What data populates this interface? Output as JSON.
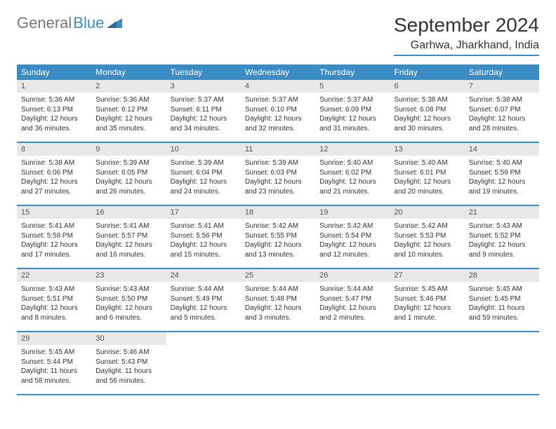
{
  "logo": {
    "text1": "General",
    "text2": "Blue"
  },
  "title": "September 2024",
  "location": "Garhwa, Jharkhand, India",
  "colors": {
    "header_bg": "#3b8bc4",
    "header_text": "#ffffff",
    "daynum_bg": "#e8e8e8",
    "border": "#3b8bc4",
    "text": "#333333",
    "logo_gray": "#777777",
    "logo_blue": "#3b8bc4"
  },
  "day_names": [
    "Sunday",
    "Monday",
    "Tuesday",
    "Wednesday",
    "Thursday",
    "Friday",
    "Saturday"
  ],
  "weeks": [
    [
      {
        "num": "1",
        "sunrise": "5:36 AM",
        "sunset": "6:13 PM",
        "daylight": "12 hours and 36 minutes."
      },
      {
        "num": "2",
        "sunrise": "5:36 AM",
        "sunset": "6:12 PM",
        "daylight": "12 hours and 35 minutes."
      },
      {
        "num": "3",
        "sunrise": "5:37 AM",
        "sunset": "6:11 PM",
        "daylight": "12 hours and 34 minutes."
      },
      {
        "num": "4",
        "sunrise": "5:37 AM",
        "sunset": "6:10 PM",
        "daylight": "12 hours and 32 minutes."
      },
      {
        "num": "5",
        "sunrise": "5:37 AM",
        "sunset": "6:09 PM",
        "daylight": "12 hours and 31 minutes."
      },
      {
        "num": "6",
        "sunrise": "5:38 AM",
        "sunset": "6:08 PM",
        "daylight": "12 hours and 30 minutes."
      },
      {
        "num": "7",
        "sunrise": "5:38 AM",
        "sunset": "6:07 PM",
        "daylight": "12 hours and 28 minutes."
      }
    ],
    [
      {
        "num": "8",
        "sunrise": "5:38 AM",
        "sunset": "6:06 PM",
        "daylight": "12 hours and 27 minutes."
      },
      {
        "num": "9",
        "sunrise": "5:39 AM",
        "sunset": "6:05 PM",
        "daylight": "12 hours and 26 minutes."
      },
      {
        "num": "10",
        "sunrise": "5:39 AM",
        "sunset": "6:04 PM",
        "daylight": "12 hours and 24 minutes."
      },
      {
        "num": "11",
        "sunrise": "5:39 AM",
        "sunset": "6:03 PM",
        "daylight": "12 hours and 23 minutes."
      },
      {
        "num": "12",
        "sunrise": "5:40 AM",
        "sunset": "6:02 PM",
        "daylight": "12 hours and 21 minutes."
      },
      {
        "num": "13",
        "sunrise": "5:40 AM",
        "sunset": "6:01 PM",
        "daylight": "12 hours and 20 minutes."
      },
      {
        "num": "14",
        "sunrise": "5:40 AM",
        "sunset": "5:59 PM",
        "daylight": "12 hours and 19 minutes."
      }
    ],
    [
      {
        "num": "15",
        "sunrise": "5:41 AM",
        "sunset": "5:58 PM",
        "daylight": "12 hours and 17 minutes."
      },
      {
        "num": "16",
        "sunrise": "5:41 AM",
        "sunset": "5:57 PM",
        "daylight": "12 hours and 16 minutes."
      },
      {
        "num": "17",
        "sunrise": "5:41 AM",
        "sunset": "5:56 PM",
        "daylight": "12 hours and 15 minutes."
      },
      {
        "num": "18",
        "sunrise": "5:42 AM",
        "sunset": "5:55 PM",
        "daylight": "12 hours and 13 minutes."
      },
      {
        "num": "19",
        "sunrise": "5:42 AM",
        "sunset": "5:54 PM",
        "daylight": "12 hours and 12 minutes."
      },
      {
        "num": "20",
        "sunrise": "5:42 AM",
        "sunset": "5:53 PM",
        "daylight": "12 hours and 10 minutes."
      },
      {
        "num": "21",
        "sunrise": "5:43 AM",
        "sunset": "5:52 PM",
        "daylight": "12 hours and 9 minutes."
      }
    ],
    [
      {
        "num": "22",
        "sunrise": "5:43 AM",
        "sunset": "5:51 PM",
        "daylight": "12 hours and 8 minutes."
      },
      {
        "num": "23",
        "sunrise": "5:43 AM",
        "sunset": "5:50 PM",
        "daylight": "12 hours and 6 minutes."
      },
      {
        "num": "24",
        "sunrise": "5:44 AM",
        "sunset": "5:49 PM",
        "daylight": "12 hours and 5 minutes."
      },
      {
        "num": "25",
        "sunrise": "5:44 AM",
        "sunset": "5:48 PM",
        "daylight": "12 hours and 3 minutes."
      },
      {
        "num": "26",
        "sunrise": "5:44 AM",
        "sunset": "5:47 PM",
        "daylight": "12 hours and 2 minutes."
      },
      {
        "num": "27",
        "sunrise": "5:45 AM",
        "sunset": "5:46 PM",
        "daylight": "12 hours and 1 minute."
      },
      {
        "num": "28",
        "sunrise": "5:45 AM",
        "sunset": "5:45 PM",
        "daylight": "11 hours and 59 minutes."
      }
    ],
    [
      {
        "num": "29",
        "sunrise": "5:45 AM",
        "sunset": "5:44 PM",
        "daylight": "11 hours and 58 minutes."
      },
      {
        "num": "30",
        "sunrise": "5:46 AM",
        "sunset": "5:43 PM",
        "daylight": "11 hours and 56 minutes."
      },
      null,
      null,
      null,
      null,
      null
    ]
  ],
  "labels": {
    "sunrise": "Sunrise:",
    "sunset": "Sunset:",
    "daylight": "Daylight:"
  }
}
